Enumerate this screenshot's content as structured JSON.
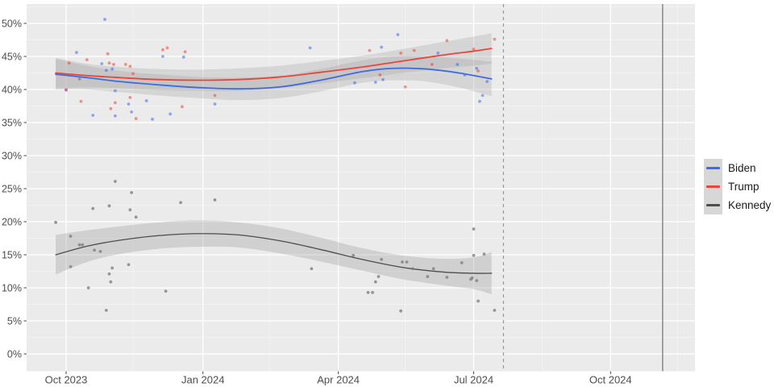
{
  "chart_data": {
    "type": "scatter",
    "title": "",
    "xlabel": "",
    "ylabel": "",
    "x_axis": {
      "ticks": [
        {
          "date": "2023-10-01",
          "label": "Oct 2023"
        },
        {
          "date": "2024-01-01",
          "label": "Jan 2024"
        },
        {
          "date": "2024-04-01",
          "label": "Apr 2024"
        },
        {
          "date": "2024-07-01",
          "label": "Jul 2024"
        },
        {
          "date": "2024-10-01",
          "label": "Oct 2024"
        }
      ],
      "minor_dates": [
        "2023-11-15",
        "2024-02-15",
        "2024-05-16",
        "2024-08-16",
        "2024-11-15"
      ],
      "range": [
        "2023-09-04",
        "2024-11-26"
      ]
    },
    "y_axis": {
      "ticks": [
        {
          "value": 0,
          "label": "0%"
        },
        {
          "value": 5,
          "label": "5%"
        },
        {
          "value": 10,
          "label": "10%"
        },
        {
          "value": 15,
          "label": "15%"
        },
        {
          "value": 20,
          "label": "20%"
        },
        {
          "value": 25,
          "label": "25%"
        },
        {
          "value": 30,
          "label": "30%"
        },
        {
          "value": 35,
          "label": "35%"
        },
        {
          "value": 40,
          "label": "40%"
        },
        {
          "value": 45,
          "label": "45%"
        },
        {
          "value": 50,
          "label": "50%"
        }
      ],
      "range": [
        0,
        52.9
      ],
      "grid": true
    },
    "annotations": {
      "dashed_vline_date": "2024-07-21",
      "solid_vline_date": "2024-11-05"
    },
    "series": [
      {
        "name": "Biden",
        "color": "#4169E1",
        "ribbon_opacity": 0.27,
        "point_opacity": 0.55,
        "line_width": 1.8,
        "smooth": [
          [
            "2023-09-24",
            42.3,
            40.0,
            44.6
          ],
          [
            "2023-10-15",
            41.8,
            40.0,
            43.6
          ],
          [
            "2023-11-06",
            41.2,
            39.6,
            42.8
          ],
          [
            "2023-12-02",
            40.7,
            39.1,
            42.3
          ],
          [
            "2023-12-28",
            40.3,
            38.7,
            41.9
          ],
          [
            "2024-01-25",
            40.1,
            38.4,
            41.8
          ],
          [
            "2024-02-22",
            40.4,
            38.7,
            42.1
          ],
          [
            "2024-03-20",
            41.4,
            39.7,
            43.1
          ],
          [
            "2024-04-17",
            42.7,
            41.0,
            44.4
          ],
          [
            "2024-05-08",
            43.2,
            41.4,
            45.0
          ],
          [
            "2024-05-30",
            43.1,
            41.2,
            45.0
          ],
          [
            "2024-06-21",
            42.5,
            40.3,
            44.7
          ],
          [
            "2024-07-13",
            41.6,
            39.0,
            44.2
          ]
        ],
        "points": [
          [
            "2023-10-01",
            39.9
          ],
          [
            "2023-10-08",
            45.6
          ],
          [
            "2023-10-10",
            41.6
          ],
          [
            "2023-10-19",
            36.1
          ],
          [
            "2023-10-25",
            43.9
          ],
          [
            "2023-10-27",
            50.6
          ],
          [
            "2023-10-28",
            42.9
          ],
          [
            "2023-11-01",
            43.1
          ],
          [
            "2023-11-03",
            39.8
          ],
          [
            "2023-11-03",
            36.0
          ],
          [
            "2023-11-12",
            37.8
          ],
          [
            "2023-11-14",
            36.6
          ],
          [
            "2023-11-24",
            38.3
          ],
          [
            "2023-11-28",
            35.5
          ],
          [
            "2023-12-05",
            45.0
          ],
          [
            "2023-12-10",
            36.3
          ],
          [
            "2023-12-19",
            44.9
          ],
          [
            "2024-01-09",
            37.8
          ],
          [
            "2024-03-13",
            46.3
          ],
          [
            "2024-04-12",
            41.0
          ],
          [
            "2024-04-26",
            41.1
          ],
          [
            "2024-04-30",
            46.4
          ],
          [
            "2024-05-01",
            41.5
          ],
          [
            "2024-05-11",
            48.3
          ],
          [
            "2024-06-07",
            45.5
          ],
          [
            "2024-06-20",
            43.8
          ],
          [
            "2024-06-25",
            42.2
          ],
          [
            "2024-07-03",
            43.2
          ],
          [
            "2024-07-05",
            38.2
          ],
          [
            "2024-07-07",
            39.1
          ],
          [
            "2024-07-10",
            41.2
          ]
        ]
      },
      {
        "name": "Trump",
        "color": "#E8453C",
        "ribbon_opacity": 0.27,
        "point_opacity": 0.55,
        "line_width": 1.8,
        "smooth": [
          [
            "2023-09-24",
            42.5,
            40.2,
            44.8
          ],
          [
            "2023-10-15",
            42.1,
            40.3,
            43.9
          ],
          [
            "2023-11-06",
            41.8,
            40.2,
            43.4
          ],
          [
            "2023-12-02",
            41.5,
            39.9,
            43.1
          ],
          [
            "2023-12-28",
            41.4,
            39.8,
            43.0
          ],
          [
            "2024-01-25",
            41.5,
            39.8,
            43.2
          ],
          [
            "2024-02-22",
            41.9,
            40.2,
            43.6
          ],
          [
            "2024-03-20",
            42.6,
            40.9,
            44.3
          ],
          [
            "2024-04-17",
            43.4,
            41.7,
            45.1
          ],
          [
            "2024-05-14",
            44.3,
            42.5,
            46.1
          ],
          [
            "2024-06-10",
            45.2,
            43.2,
            47.2
          ],
          [
            "2024-07-01",
            45.8,
            43.6,
            48.0
          ],
          [
            "2024-07-13",
            46.2,
            43.9,
            48.5
          ]
        ],
        "points": [
          [
            "2023-10-01",
            40.0
          ],
          [
            "2023-10-03",
            44.0
          ],
          [
            "2023-10-11",
            38.2
          ],
          [
            "2023-10-15",
            44.5
          ],
          [
            "2023-10-29",
            45.4
          ],
          [
            "2023-10-30",
            44.0
          ],
          [
            "2023-10-31",
            37.1
          ],
          [
            "2023-11-02",
            43.8
          ],
          [
            "2023-11-03",
            38.0
          ],
          [
            "2023-11-10",
            43.8
          ],
          [
            "2023-11-13",
            43.5
          ],
          [
            "2023-11-13",
            38.8
          ],
          [
            "2023-11-15",
            42.4
          ],
          [
            "2023-11-17",
            35.6
          ],
          [
            "2023-12-05",
            46.0
          ],
          [
            "2023-12-08",
            46.3
          ],
          [
            "2023-12-18",
            37.4
          ],
          [
            "2023-12-20",
            45.7
          ],
          [
            "2024-01-09",
            39.1
          ],
          [
            "2024-04-22",
            45.9
          ],
          [
            "2024-04-29",
            42.2
          ],
          [
            "2024-05-13",
            45.5
          ],
          [
            "2024-05-16",
            40.4
          ],
          [
            "2024-05-22",
            45.9
          ],
          [
            "2024-06-03",
            43.8
          ],
          [
            "2024-06-13",
            47.4
          ],
          [
            "2024-07-01",
            46.1
          ],
          [
            "2024-07-04",
            42.8
          ],
          [
            "2024-07-15",
            47.6
          ]
        ]
      },
      {
        "name": "Kennedy",
        "color": "#4D4D4D",
        "point_color": "#7F7F7F",
        "ribbon_opacity": 0.33,
        "point_opacity": 0.8,
        "line_width": 1.3,
        "smooth": [
          [
            "2023-09-24",
            15.0,
            12.0,
            18.0
          ],
          [
            "2023-10-15",
            16.3,
            13.9,
            18.7
          ],
          [
            "2023-11-06",
            17.2,
            15.1,
            19.3
          ],
          [
            "2023-12-02",
            17.9,
            15.9,
            19.9
          ],
          [
            "2023-12-28",
            18.2,
            16.2,
            20.2
          ],
          [
            "2024-01-25",
            18.0,
            16.1,
            19.9
          ],
          [
            "2024-02-22",
            17.1,
            15.2,
            19.0
          ],
          [
            "2024-03-20",
            15.8,
            14.0,
            17.6
          ],
          [
            "2024-04-17",
            14.3,
            12.6,
            16.0
          ],
          [
            "2024-05-14",
            13.1,
            11.3,
            14.9
          ],
          [
            "2024-06-10",
            12.4,
            10.4,
            14.4
          ],
          [
            "2024-07-01",
            12.2,
            9.8,
            14.6
          ],
          [
            "2024-07-13",
            12.2,
            9.0,
            15.4
          ]
        ],
        "points": [
          [
            "2023-09-24",
            19.9
          ],
          [
            "2023-10-04",
            17.8
          ],
          [
            "2023-10-04",
            13.2
          ],
          [
            "2023-10-10",
            16.5
          ],
          [
            "2023-10-12",
            16.5
          ],
          [
            "2023-10-16",
            10.0
          ],
          [
            "2023-10-19",
            22.0
          ],
          [
            "2023-10-20",
            15.7
          ],
          [
            "2023-10-24",
            15.5
          ],
          [
            "2023-10-28",
            6.6
          ],
          [
            "2023-10-30",
            22.4
          ],
          [
            "2023-10-30",
            12.1
          ],
          [
            "2023-10-31",
            10.9
          ],
          [
            "2023-11-01",
            13.0
          ],
          [
            "2023-11-03",
            26.1
          ],
          [
            "2023-11-12",
            13.5
          ],
          [
            "2023-11-13",
            21.8
          ],
          [
            "2023-11-14",
            24.4
          ],
          [
            "2023-11-17",
            20.7
          ],
          [
            "2023-12-07",
            9.5
          ],
          [
            "2023-12-17",
            22.9
          ],
          [
            "2024-01-09",
            23.3
          ],
          [
            "2024-03-14",
            12.9
          ],
          [
            "2024-04-11",
            14.9
          ],
          [
            "2024-04-21",
            9.3
          ],
          [
            "2024-04-24",
            9.3
          ],
          [
            "2024-04-26",
            10.9
          ],
          [
            "2024-04-28",
            11.7
          ],
          [
            "2024-04-30",
            14.3
          ],
          [
            "2024-05-13",
            6.5
          ],
          [
            "2024-05-14",
            13.9
          ],
          [
            "2024-05-17",
            13.9
          ],
          [
            "2024-05-21",
            12.9
          ],
          [
            "2024-05-31",
            11.7
          ],
          [
            "2024-06-04",
            12.9
          ],
          [
            "2024-06-13",
            11.6
          ],
          [
            "2024-06-23",
            13.8
          ],
          [
            "2024-06-29",
            11.3
          ],
          [
            "2024-06-30",
            11.5
          ],
          [
            "2024-07-01",
            18.9
          ],
          [
            "2024-07-01",
            14.9
          ],
          [
            "2024-07-03",
            11.1
          ],
          [
            "2024-07-04",
            8.0
          ],
          [
            "2024-07-08",
            15.1
          ],
          [
            "2024-07-15",
            6.6
          ]
        ]
      }
    ]
  },
  "legend": {
    "items": [
      {
        "label": "Biden",
        "color": "#4169E1"
      },
      {
        "label": "Trump",
        "color": "#E8453C"
      },
      {
        "label": "Kennedy",
        "color": "#4D4D4D"
      }
    ]
  },
  "colors": {
    "panel_background": "#EBEBEB",
    "grid_major": "#FFFFFF",
    "grid_minor": "#F4F4F4",
    "ribbon": "#9B9B9B",
    "axis_text": "#4D4D4D",
    "tick_mark": "#333333",
    "dashed_vline": "#999999",
    "solid_vline": "#808080",
    "legend_key_background": "#D7D7D7"
  }
}
